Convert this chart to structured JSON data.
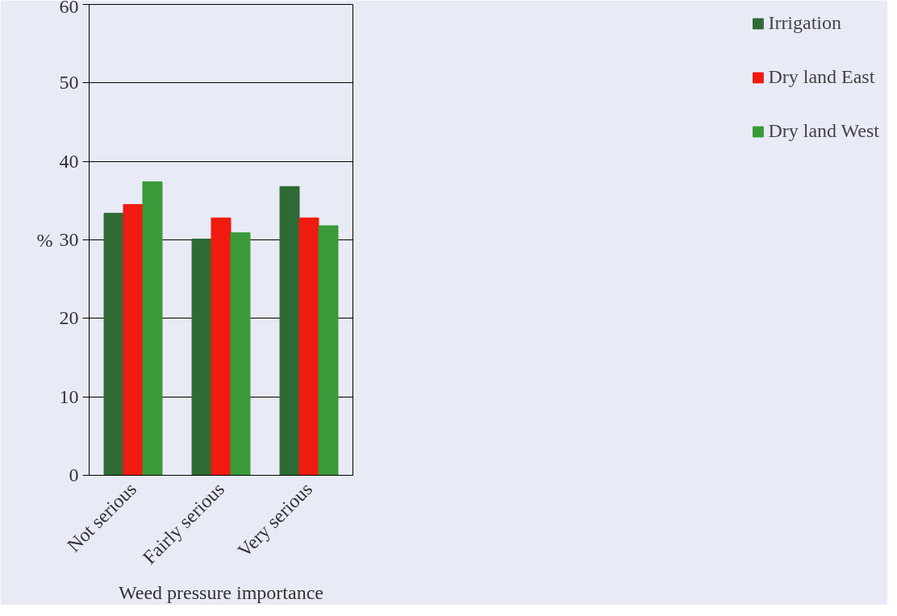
{
  "chart_data": {
    "type": "bar",
    "xlabel": "Weed pressure importance",
    "ylabel": "%",
    "categories": [
      "Not serious",
      "Fairly serious",
      "Very serious"
    ],
    "series": [
      {
        "name": "Irrigation",
        "color": "#2e6b34",
        "values": [
          33.4,
          30.1,
          36.8
        ]
      },
      {
        "name": "Dry land East",
        "color": "#f01a10",
        "values": [
          34.5,
          32.8,
          32.8
        ]
      },
      {
        "name": "Dry land West",
        "color": "#3a9a3a",
        "values": [
          37.4,
          30.9,
          31.8
        ]
      }
    ],
    "ylim": [
      0,
      60
    ],
    "yticks": [
      0,
      10,
      20,
      30,
      40,
      50,
      60
    ],
    "grid": "y",
    "legend": "right"
  }
}
